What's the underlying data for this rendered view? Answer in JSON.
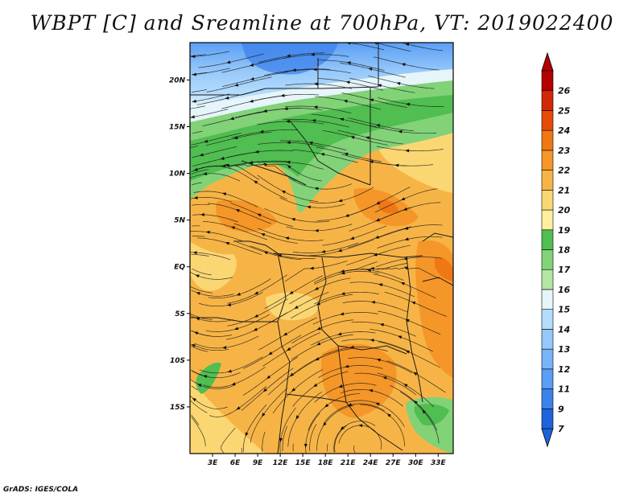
{
  "title": "WBPT [C] and Sreamline at 700hPa, VT: 2019022400",
  "credit": "GrADS: IGES/COLA",
  "map": {
    "variable": "Wet-bulb potential temperature",
    "units": "C",
    "level": "700hPa",
    "valid_time": "2019022400",
    "lon_range": [
      0,
      35
    ],
    "lat_range": [
      -20,
      24
    ],
    "lon_ticks": [
      {
        "value": 3,
        "label": "3E"
      },
      {
        "value": 6,
        "label": "6E"
      },
      {
        "value": 9,
        "label": "9E"
      },
      {
        "value": 12,
        "label": "12E"
      },
      {
        "value": 15,
        "label": "15E"
      },
      {
        "value": 18,
        "label": "18E"
      },
      {
        "value": 21,
        "label": "21E"
      },
      {
        "value": 24,
        "label": "24E"
      },
      {
        "value": 27,
        "label": "27E"
      },
      {
        "value": 30,
        "label": "30E"
      },
      {
        "value": 33,
        "label": "33E"
      }
    ],
    "lat_ticks": [
      {
        "value": 20,
        "label": "20N"
      },
      {
        "value": 15,
        "label": "15N"
      },
      {
        "value": 10,
        "label": "10N"
      },
      {
        "value": 5,
        "label": "5N"
      },
      {
        "value": 0,
        "label": "EQ"
      },
      {
        "value": -5,
        "label": "5S"
      },
      {
        "value": -10,
        "label": "10S"
      },
      {
        "value": -15,
        "label": "15S"
      }
    ]
  },
  "colorbar": {
    "labels": [
      "7",
      "9",
      "11",
      "12",
      "13",
      "14",
      "15",
      "16",
      "17",
      "18",
      "19",
      "20",
      "21",
      "22",
      "23",
      "24",
      "25",
      "26"
    ],
    "colors": [
      "#1e64dc",
      "#3c82eb",
      "#5a9ef5",
      "#78b4f8",
      "#96c8fa",
      "#b4dcfc",
      "#e6f5fa",
      "#b4e6a5",
      "#82d278",
      "#50be50",
      "#fff0a0",
      "#fbd773",
      "#f7b446",
      "#f59628",
      "#f07814",
      "#e64b0a",
      "#d22806",
      "#b40000"
    ]
  }
}
